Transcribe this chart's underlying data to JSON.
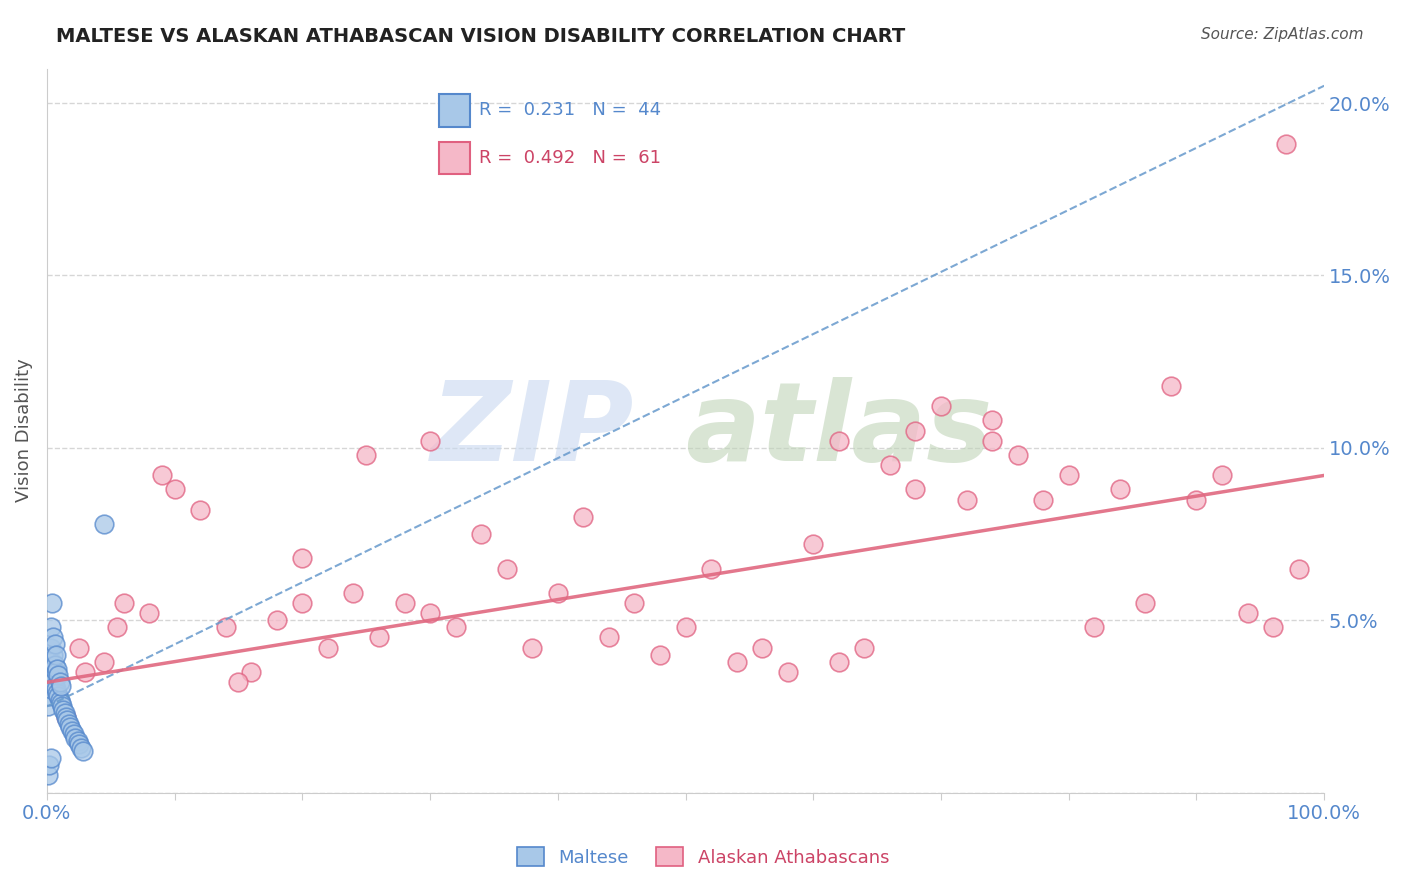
{
  "title": "MALTESE VS ALASKAN ATHABASCAN VISION DISABILITY CORRELATION CHART",
  "source": "Source: ZipAtlas.com",
  "ylabel": "Vision Disability",
  "xlim": [
    0,
    100
  ],
  "ylim": [
    0,
    21
  ],
  "yticks": [
    0,
    5,
    10,
    15,
    20
  ],
  "ytick_labels": [
    "",
    "5.0%",
    "10.0%",
    "15.0%",
    "20.0%"
  ],
  "legend_r1": "R =  0.231",
  "legend_n1": "N =  44",
  "legend_r2": "R =  0.492",
  "legend_n2": "N =  61",
  "maltese_color": "#a8c8e8",
  "athabascan_color": "#f5b8c8",
  "maltese_edge": "#5588cc",
  "athabascan_edge": "#e06080",
  "trend_maltese_color": "#6699cc",
  "trend_athabascan_color": "#e06880",
  "tick_color": "#5588cc",
  "label_color": "#555555",
  "grid_color": "#cccccc",
  "title_color": "#222222",
  "source_color": "#555555",
  "maltese_x": [
    0.1,
    0.2,
    0.2,
    0.3,
    0.3,
    0.3,
    0.4,
    0.4,
    0.4,
    0.5,
    0.5,
    0.5,
    0.6,
    0.6,
    0.6,
    0.7,
    0.7,
    0.7,
    0.8,
    0.8,
    0.9,
    0.9,
    1.0,
    1.0,
    1.1,
    1.1,
    1.2,
    1.3,
    1.4,
    1.5,
    1.6,
    1.7,
    1.8,
    2.0,
    2.1,
    2.2,
    2.4,
    2.5,
    2.7,
    2.8,
    0.1,
    0.2,
    0.3,
    4.5
  ],
  "maltese_y": [
    2.5,
    2.8,
    3.5,
    3.0,
    4.2,
    4.8,
    3.3,
    3.8,
    5.5,
    3.2,
    4.0,
    4.5,
    3.1,
    3.7,
    4.3,
    3.0,
    3.5,
    4.0,
    2.9,
    3.6,
    2.8,
    3.4,
    2.7,
    3.2,
    2.6,
    3.1,
    2.5,
    2.4,
    2.3,
    2.2,
    2.1,
    2.0,
    1.9,
    1.8,
    1.7,
    1.6,
    1.5,
    1.4,
    1.3,
    1.2,
    0.5,
    0.8,
    1.0,
    7.8
  ],
  "athabascan_x": [
    1.5,
    2.5,
    4.5,
    6.0,
    8.0,
    9.0,
    12.0,
    14.0,
    16.0,
    18.0,
    20.0,
    22.0,
    24.0,
    26.0,
    28.0,
    30.0,
    32.0,
    34.0,
    36.0,
    38.0,
    40.0,
    42.0,
    44.0,
    46.0,
    48.0,
    50.0,
    52.0,
    54.0,
    56.0,
    58.0,
    60.0,
    62.0,
    64.0,
    66.0,
    68.0,
    70.0,
    72.0,
    74.0,
    76.0,
    78.0,
    80.0,
    82.0,
    84.0,
    86.0,
    88.0,
    90.0,
    92.0,
    94.0,
    96.0,
    98.0,
    3.0,
    5.5,
    10.0,
    15.0,
    20.0,
    25.0,
    30.0,
    62.0,
    68.0,
    74.0,
    97.0
  ],
  "athabascan_y": [
    2.2,
    4.2,
    3.8,
    5.5,
    5.2,
    9.2,
    8.2,
    4.8,
    3.5,
    5.0,
    5.5,
    4.2,
    5.8,
    4.5,
    5.5,
    5.2,
    4.8,
    7.5,
    6.5,
    4.2,
    5.8,
    8.0,
    4.5,
    5.5,
    4.0,
    4.8,
    6.5,
    3.8,
    4.2,
    3.5,
    7.2,
    3.8,
    4.2,
    9.5,
    8.8,
    11.2,
    8.5,
    10.2,
    9.8,
    8.5,
    9.2,
    4.8,
    8.8,
    5.5,
    11.8,
    8.5,
    9.2,
    5.2,
    4.8,
    6.5,
    3.5,
    4.8,
    8.8,
    3.2,
    6.8,
    9.8,
    10.2,
    10.2,
    10.5,
    10.8,
    18.8
  ],
  "blue_trend_x0": 0,
  "blue_trend_y0": 2.5,
  "blue_trend_x1": 100,
  "blue_trend_y1": 20.5,
  "pink_trend_x0": 0,
  "pink_trend_y0": 3.2,
  "pink_trend_x1": 100,
  "pink_trend_y1": 9.2
}
